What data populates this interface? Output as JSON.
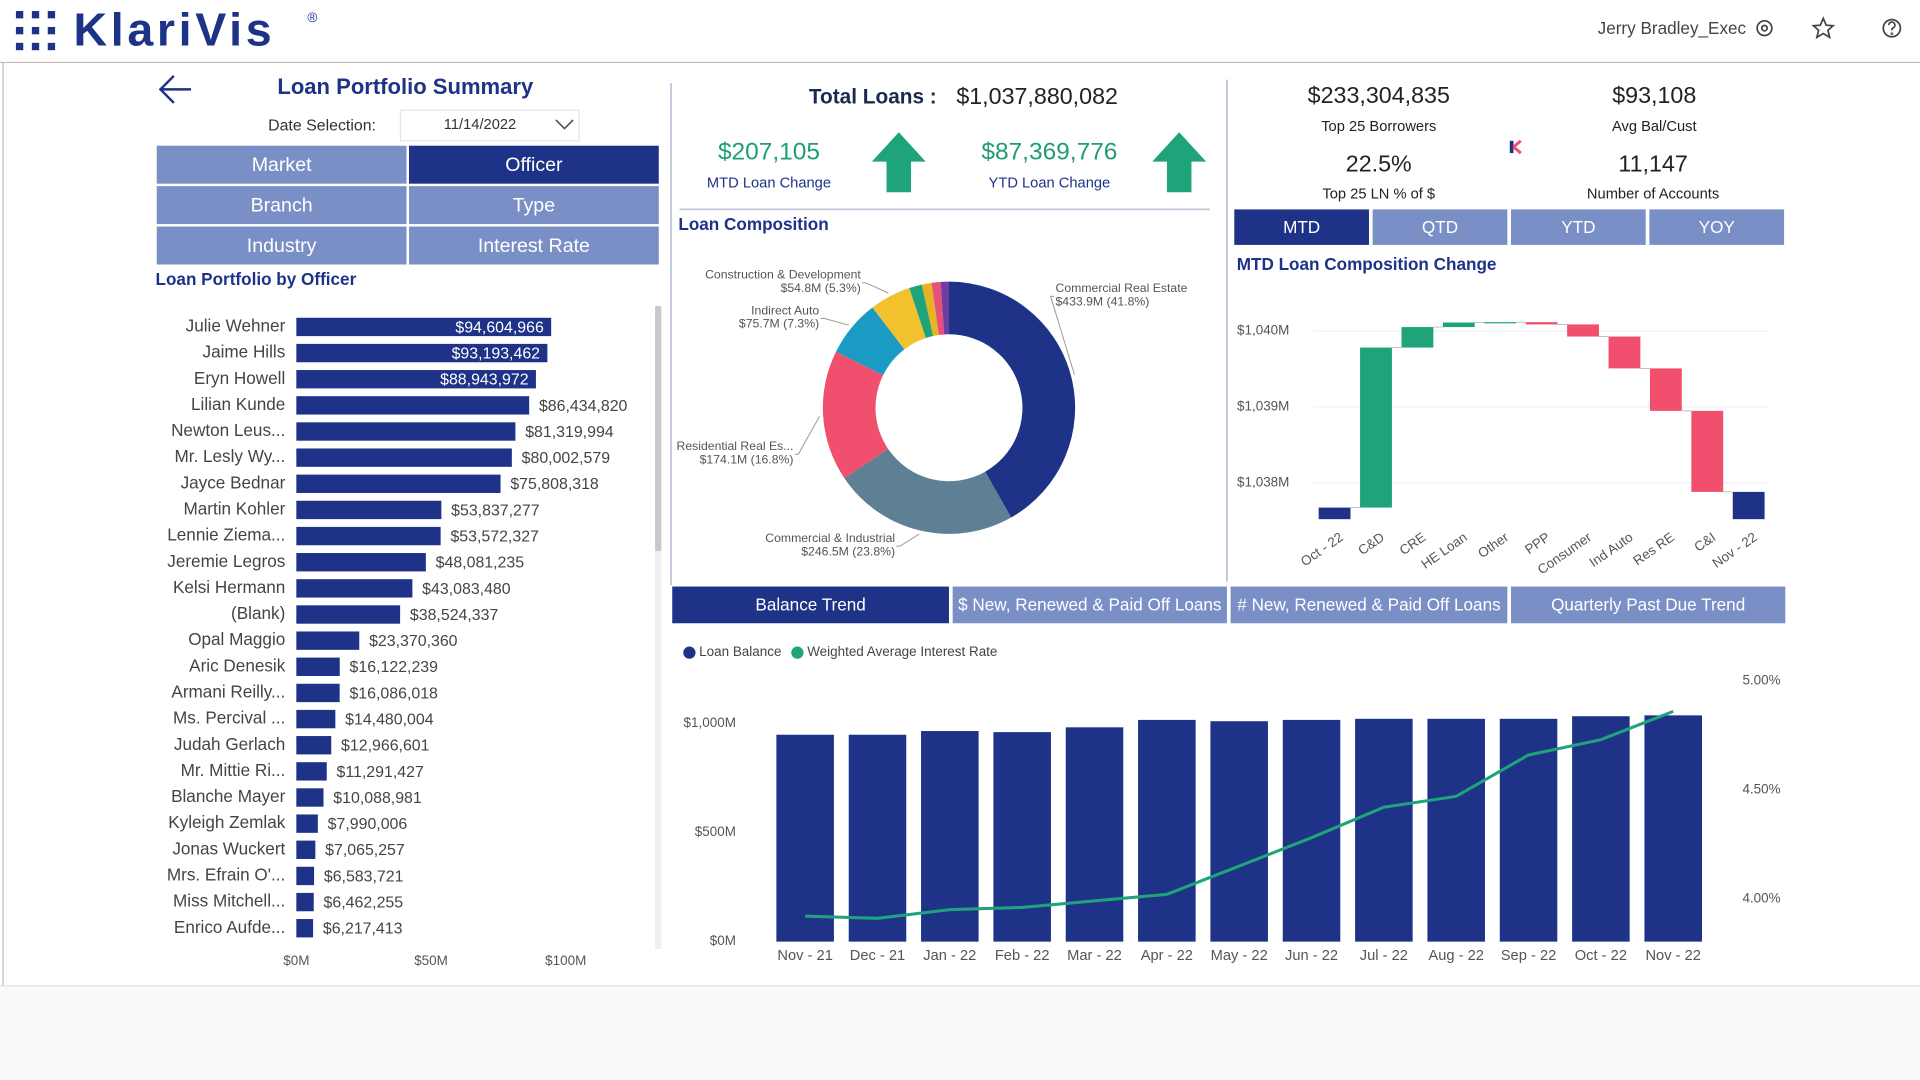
{
  "header": {
    "brand": "KlariVis",
    "brand_mark": "®",
    "user": "Jerry Bradley_Exec"
  },
  "summary": {
    "title": "Loan Portfolio Summary",
    "date_label": "Date Selection:",
    "date_value": "11/14/2022",
    "tabs": [
      {
        "label": "Market",
        "active": false
      },
      {
        "label": "Officer",
        "active": true
      },
      {
        "label": "Branch",
        "active": false
      },
      {
        "label": "Type",
        "active": false
      },
      {
        "label": "Industry",
        "active": false
      },
      {
        "label": "Interest Rate",
        "active": false
      }
    ]
  },
  "kpis": {
    "total_loans": {
      "label": "Total Loans :",
      "value": "$1,037,880,082"
    },
    "mtd_change": {
      "label": "MTD Loan Change",
      "value": "$207,105"
    },
    "ytd_change": {
      "label": "YTD Loan Change",
      "value": "$87,369,776"
    },
    "top25": {
      "label": "Top 25 Borrowers",
      "value": "$233,304,835"
    },
    "avg_bal": {
      "label": "Avg Bal/Cust",
      "value": "$93,108"
    },
    "top25_pct": {
      "label": "Top 25 LN % of $",
      "value": "22.5%"
    },
    "accounts": {
      "label": "Number of Accounts",
      "value": "11,147"
    }
  },
  "period_tabs": [
    {
      "label": "MTD",
      "active": true
    },
    {
      "label": "QTD",
      "active": false
    },
    {
      "label": "YTD",
      "active": false
    },
    {
      "label": "YOY",
      "active": false
    }
  ],
  "trend_tabs": [
    {
      "label": "Balance Trend",
      "active": true
    },
    {
      "label": "$ New, Renewed & Paid Off Loans",
      "active": false
    },
    {
      "label": "# New, Renewed & Paid Off Loans",
      "active": false
    },
    {
      "label": "Quarterly Past Due Trend",
      "active": false
    }
  ],
  "chart_data": [
    {
      "type": "bar",
      "title": "Loan Portfolio by Officer",
      "color": "#1e3388",
      "categories": [
        "Julie Wehner",
        "Jaime Hills",
        "Eryn Howell",
        "Lilian Kunde",
        "Newton Leus...",
        "Mr. Lesly Wy...",
        "Jayce Bednar",
        "Martin Kohler",
        "Lennie Ziema...",
        "Jeremie Legros",
        "Kelsi Hermann",
        "(Blank)",
        "Opal Maggio",
        "Aric Denesik",
        "Armani Reilly...",
        "Ms. Percival ...",
        "Judah Gerlach",
        "Mr. Mittie Ri...",
        "Blanche Mayer",
        "Kyleigh Zemlak",
        "Jonas Wuckert",
        "Mrs. Efrain O'...",
        "Miss Mitchell...",
        "Enrico Aufde..."
      ],
      "values": [
        94604966,
        93193462,
        88943972,
        86434820,
        81319994,
        80002579,
        75808318,
        53837277,
        53572327,
        48081235,
        43083480,
        38524337,
        23370360,
        16122239,
        16086018,
        14480004,
        12966601,
        11291427,
        10088981,
        7990006,
        7065257,
        6583721,
        6462255,
        6217413
      ],
      "value_labels": [
        "$94,604,966",
        "$93,193,462",
        "$88,943,972",
        "$86,434,820",
        "$81,319,994",
        "$80,002,579",
        "$75,808,318",
        "$53,837,277",
        "$53,572,327",
        "$48,081,235",
        "$43,083,480",
        "$38,524,337",
        "$23,370,360",
        "$16,122,239",
        "$16,086,018",
        "$14,480,004",
        "$12,966,601",
        "$11,291,427",
        "$10,088,981",
        "$7,990,006",
        "$7,065,257",
        "$6,583,721",
        "$6,462,255",
        "$6,217,413"
      ],
      "xlim": [
        0,
        130000000
      ],
      "xticks": [
        {
          "value": 0,
          "label": "$0M"
        },
        {
          "value": 50000000,
          "label": "$50M"
        },
        {
          "value": 100000000,
          "label": "$100M"
        }
      ]
    },
    {
      "type": "donut",
      "title": "Loan Composition",
      "categories": [
        "Commercial Real Estate",
        "Commercial & Industrial",
        "Residential Real Es...",
        "Indirect Auto",
        "Construction & Development",
        null,
        null,
        null,
        null
      ],
      "values": [
        433.9,
        246.5,
        174.1,
        75.7,
        54.8,
        17,
        13,
        12,
        10.9
      ],
      "value_labels": [
        "$433.9M (41.8%)",
        "$246.5M (23.8%)",
        "$174.1M (16.8%)",
        "$75.7M (7.3%)",
        "$54.8M (5.3%)",
        null,
        null,
        null,
        null
      ],
      "colors": [
        "#1e3388",
        "#5f7f95",
        "#f0506e",
        "#1a9bc4",
        "#f2c12e",
        "#1fa37a",
        "#e6b422",
        "#e8507a",
        "#6b3fa0"
      ]
    },
    {
      "type": "waterfall",
      "title": "MTD Loan Composition Change",
      "categories": [
        "Oct - 22",
        "C&D",
        "CRE",
        "HE Loan",
        "Other",
        "PPP",
        "Consumer",
        "Ind Auto",
        "Res RE",
        "C&I",
        "Nov - 22"
      ],
      "values": [
        1037.673,
        2.11,
        0.27,
        0.06,
        0.005,
        -0.03,
        -0.16,
        -0.42,
        -0.56,
        -1.068,
        1037.88
      ],
      "total_color": "#1e3388",
      "increase_color": "#1fa37a",
      "decrease_color": "#f0506e",
      "ylim": [
        1037.52,
        1040.2
      ],
      "yticks": [
        {
          "value": 1038,
          "label": "$1,038M"
        },
        {
          "value": 1039,
          "label": "$1,039M"
        },
        {
          "value": 1040,
          "label": "$1,040M"
        }
      ]
    },
    {
      "type": "combo",
      "categories": [
        "Nov - 21",
        "Dec - 21",
        "Jan - 22",
        "Feb - 22",
        "Mar - 22",
        "Apr - 22",
        "May - 22",
        "Jun - 22",
        "Jul - 22",
        "Aug - 22",
        "Sep - 22",
        "Oct - 22",
        "Nov - 22"
      ],
      "series": [
        {
          "name": "Loan Balance",
          "type": "bar",
          "color": "#1e3388",
          "values": [
            949,
            949,
            966,
            961,
            983,
            1017,
            1011,
            1017,
            1022,
            1022,
            1022,
            1034,
            1037.88
          ]
        },
        {
          "name": "Weighted Average Interest Rate",
          "type": "line",
          "axis": "y2",
          "color": "#1fa37a",
          "values": [
            3.92,
            3.91,
            3.95,
            3.96,
            3.99,
            4.02,
            4.15,
            4.28,
            4.42,
            4.47,
            4.66,
            4.73,
            4.86
          ]
        }
      ],
      "ylim": [
        0,
        1230
      ],
      "yticks": [
        {
          "value": 0,
          "label": "$0M"
        },
        {
          "value": 500,
          "label": "$500M"
        },
        {
          "value": 1000,
          "label": "$1,000M"
        }
      ],
      "y2lim": [
        3.803,
        5.034
      ],
      "y2ticks": [
        {
          "value": 4,
          "label": "4.00%"
        },
        {
          "value": 4.5,
          "label": "4.50%"
        },
        {
          "value": 5,
          "label": "5.00%"
        }
      ]
    }
  ]
}
